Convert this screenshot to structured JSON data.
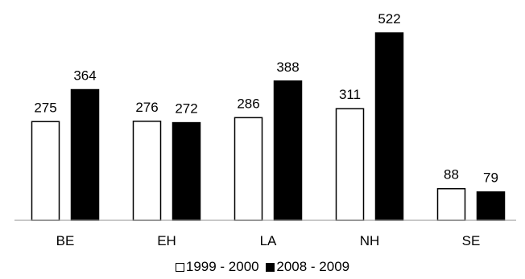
{
  "chart_data": {
    "type": "bar",
    "categories": [
      "BE",
      "EH",
      "LA",
      "NH",
      "SE"
    ],
    "series": [
      {
        "name": "1999 - 2000",
        "values": [
          275,
          276,
          286,
          311,
          88
        ],
        "color": "#ffffff"
      },
      {
        "name": "2008 - 2009",
        "values": [
          364,
          272,
          388,
          522,
          79
        ],
        "color": "#000000"
      }
    ],
    "title": "",
    "xlabel": "",
    "ylabel": "",
    "ylim": [
      0,
      522
    ],
    "grid": false,
    "legend_position": "bottom"
  }
}
